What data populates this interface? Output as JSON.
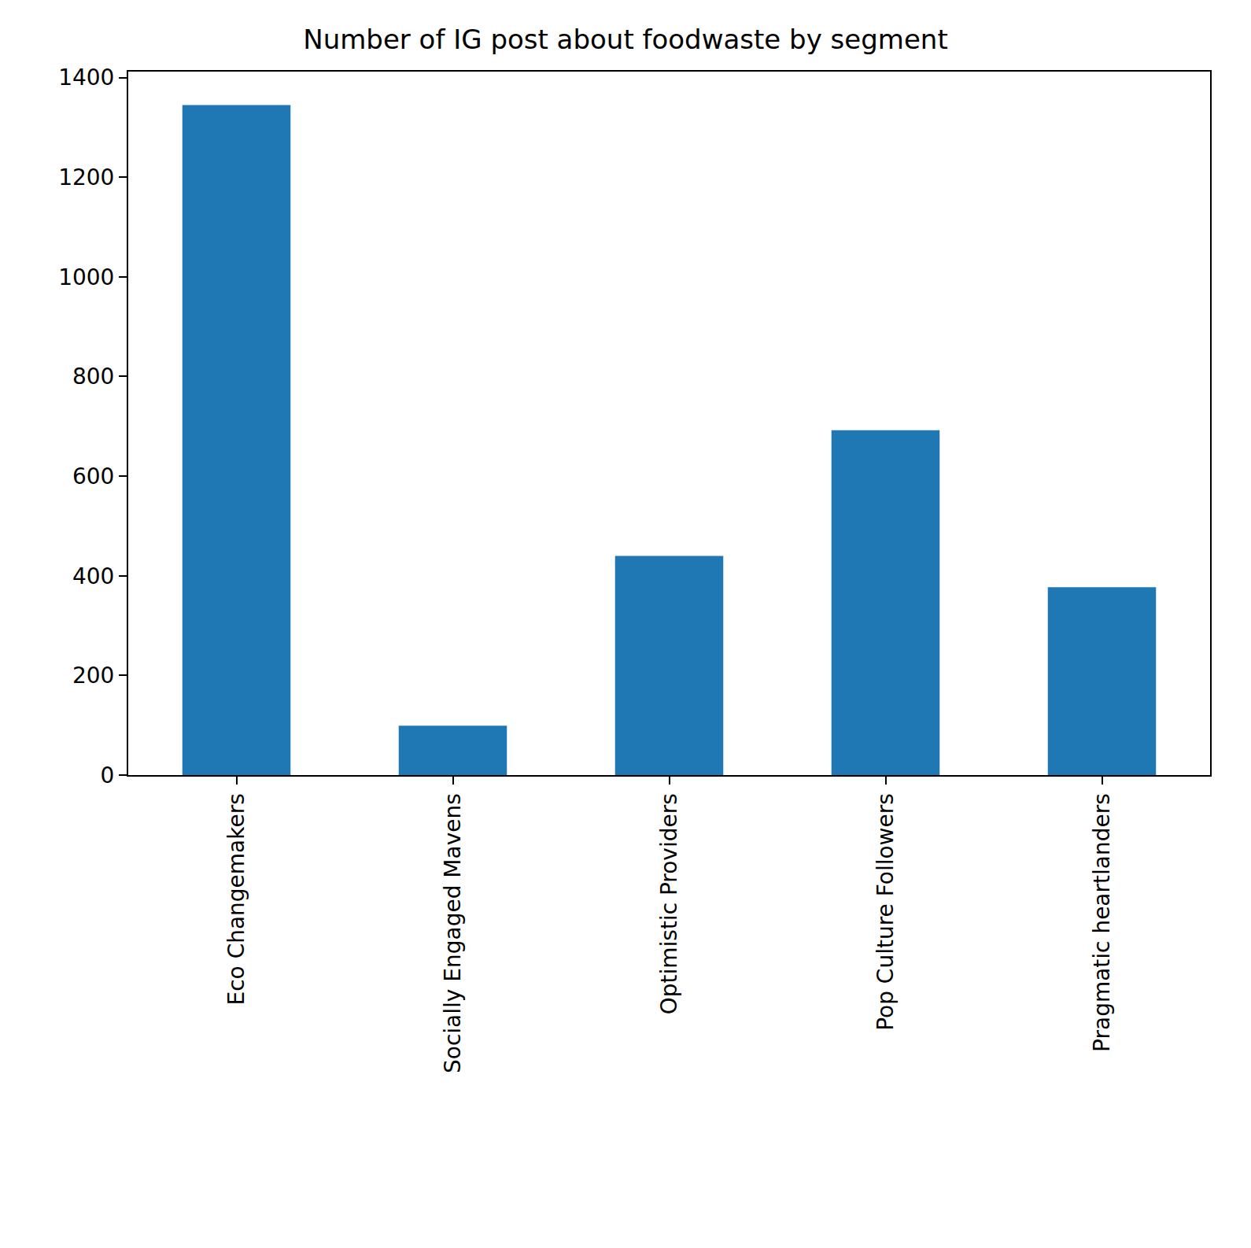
{
  "chart_data": {
    "type": "bar",
    "title": "Number of IG post about foodwaste by segment",
    "categories": [
      "Eco Changemakers",
      "Socially Engaged Mavens",
      "Optimistic Providers",
      "Pop Culture Followers",
      "Pragmatic heartlanders"
    ],
    "values": [
      1345,
      99,
      440,
      692,
      377
    ],
    "color": "#1f77b4",
    "ylim": [
      0,
      1412
    ],
    "yticks": [
      0,
      200,
      400,
      600,
      800,
      1000,
      1200,
      1400
    ],
    "grid": false
  }
}
